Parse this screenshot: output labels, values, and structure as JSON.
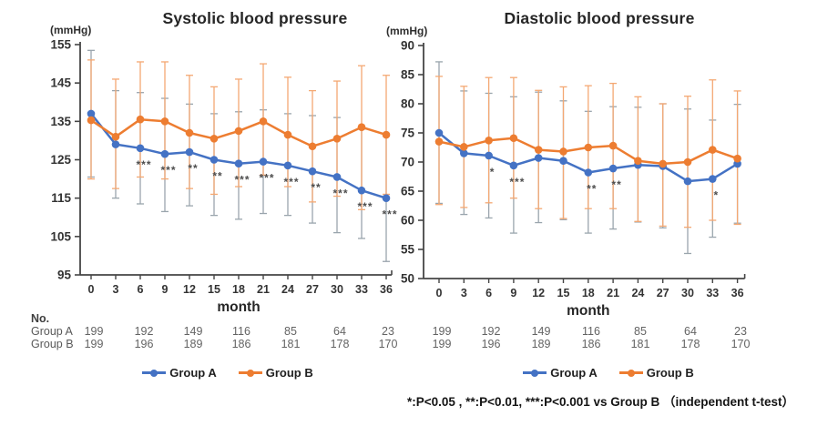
{
  "figure": {
    "background": "#ffffff"
  },
  "chart_data": [
    {
      "type": "line",
      "title": "Systolic blood pressure",
      "unit_label": "(mmHg)",
      "xlabel": "month",
      "x": [
        0,
        3,
        6,
        9,
        12,
        15,
        18,
        21,
        24,
        27,
        30,
        33,
        36
      ],
      "ylim": [
        95,
        155
      ],
      "ytick_step": 10,
      "grid": false,
      "series": [
        {
          "name": "Group A",
          "color": "#4472c4",
          "errcolor": "#9aa5ad",
          "values": [
            137,
            129,
            128,
            126.5,
            127,
            125,
            124,
            124.5,
            123.5,
            122,
            120.5,
            117,
            115
          ],
          "upper": [
            153.5,
            143,
            142.5,
            141,
            139.5,
            137,
            137.5,
            138,
            137,
            136.5,
            136,
            133,
            131.5
          ],
          "lower": [
            120.5,
            115,
            113.5,
            111.5,
            113,
            110.5,
            109.5,
            111,
            110.5,
            108.5,
            106,
            104.5,
            98.5
          ]
        },
        {
          "name": "Group B",
          "color": "#ed7d31",
          "errcolor": "#f4a873",
          "values": [
            135.3,
            131,
            135.5,
            135,
            132,
            130.5,
            132.5,
            135,
            131.5,
            128.5,
            130.5,
            133.5,
            131.5
          ],
          "upper": [
            151,
            146,
            150.5,
            150.5,
            147,
            144,
            146,
            150,
            146.5,
            143,
            145.5,
            149.5,
            147
          ],
          "lower": [
            120,
            117.5,
            120.5,
            120,
            117.5,
            116,
            118,
            121,
            118,
            114,
            115.5,
            112,
            116
          ]
        }
      ],
      "significance": {
        "6": "***",
        "9": "***",
        "12": "**",
        "15": "**",
        "18": "***",
        "21": "***",
        "24": "***",
        "27": "**",
        "30": "***",
        "33": "***",
        "36": "***"
      }
    },
    {
      "type": "line",
      "title": "Diastolic blood pressure",
      "unit_label": "(mmHg)",
      "xlabel": "month",
      "x": [
        0,
        3,
        6,
        9,
        12,
        15,
        18,
        21,
        24,
        27,
        30,
        33,
        36
      ],
      "ylim": [
        50,
        90
      ],
      "ytick_step": 5,
      "grid": false,
      "series": [
        {
          "name": "Group A",
          "color": "#4472c4",
          "errcolor": "#9aa5ad",
          "values": [
            75,
            71.5,
            71.1,
            69.4,
            70.7,
            70.2,
            68.2,
            68.9,
            69.5,
            69.3,
            66.7,
            67.1,
            69.7
          ],
          "upper": [
            87.2,
            82.2,
            81.8,
            81.2,
            82,
            80.5,
            78.7,
            79.5,
            79.4,
            80,
            79.1,
            77.2,
            79.9
          ],
          "lower": [
            62.9,
            61,
            60.4,
            57.8,
            59.6,
            60.1,
            57.8,
            58.5,
            59.7,
            58.7,
            54.3,
            57.1,
            59.5
          ]
        },
        {
          "name": "Group B",
          "color": "#ed7d31",
          "errcolor": "#f4a873",
          "values": [
            73.5,
            72.6,
            73.7,
            74.1,
            72.1,
            71.8,
            72.5,
            72.8,
            70.2,
            69.7,
            70,
            72.1,
            70.6
          ],
          "upper": [
            84.7,
            83,
            84.5,
            84.5,
            82.3,
            82.9,
            83.1,
            83.5,
            81.2,
            80,
            81.3,
            84.1,
            82.2
          ],
          "lower": [
            62.7,
            62.2,
            63,
            63.8,
            62,
            60.3,
            62,
            62,
            59.8,
            59,
            58.8,
            60,
            59.3
          ]
        }
      ],
      "significance": {
        "6": "*",
        "9": "***",
        "18": "**",
        "21": "**",
        "33": "*"
      }
    }
  ],
  "sample_table": {
    "heading": "No.",
    "row_labels": [
      "Group A",
      "Group B"
    ],
    "columns_months": [
      0,
      6,
      12,
      18,
      24,
      30,
      36
    ],
    "group_a": [
      199,
      192,
      149,
      116,
      85,
      64,
      23
    ],
    "group_b": [
      199,
      196,
      189,
      186,
      181,
      178,
      170
    ]
  },
  "legend": {
    "items": [
      {
        "label": "Group A",
        "color": "#4472c4"
      },
      {
        "label": "Group B",
        "color": "#ed7d31"
      }
    ]
  },
  "footnote": "*:P<0.05 , **:P<0.01, ***:P<0.001 vs Group B （independent t-test）",
  "marker_color": "#4d4d4d"
}
